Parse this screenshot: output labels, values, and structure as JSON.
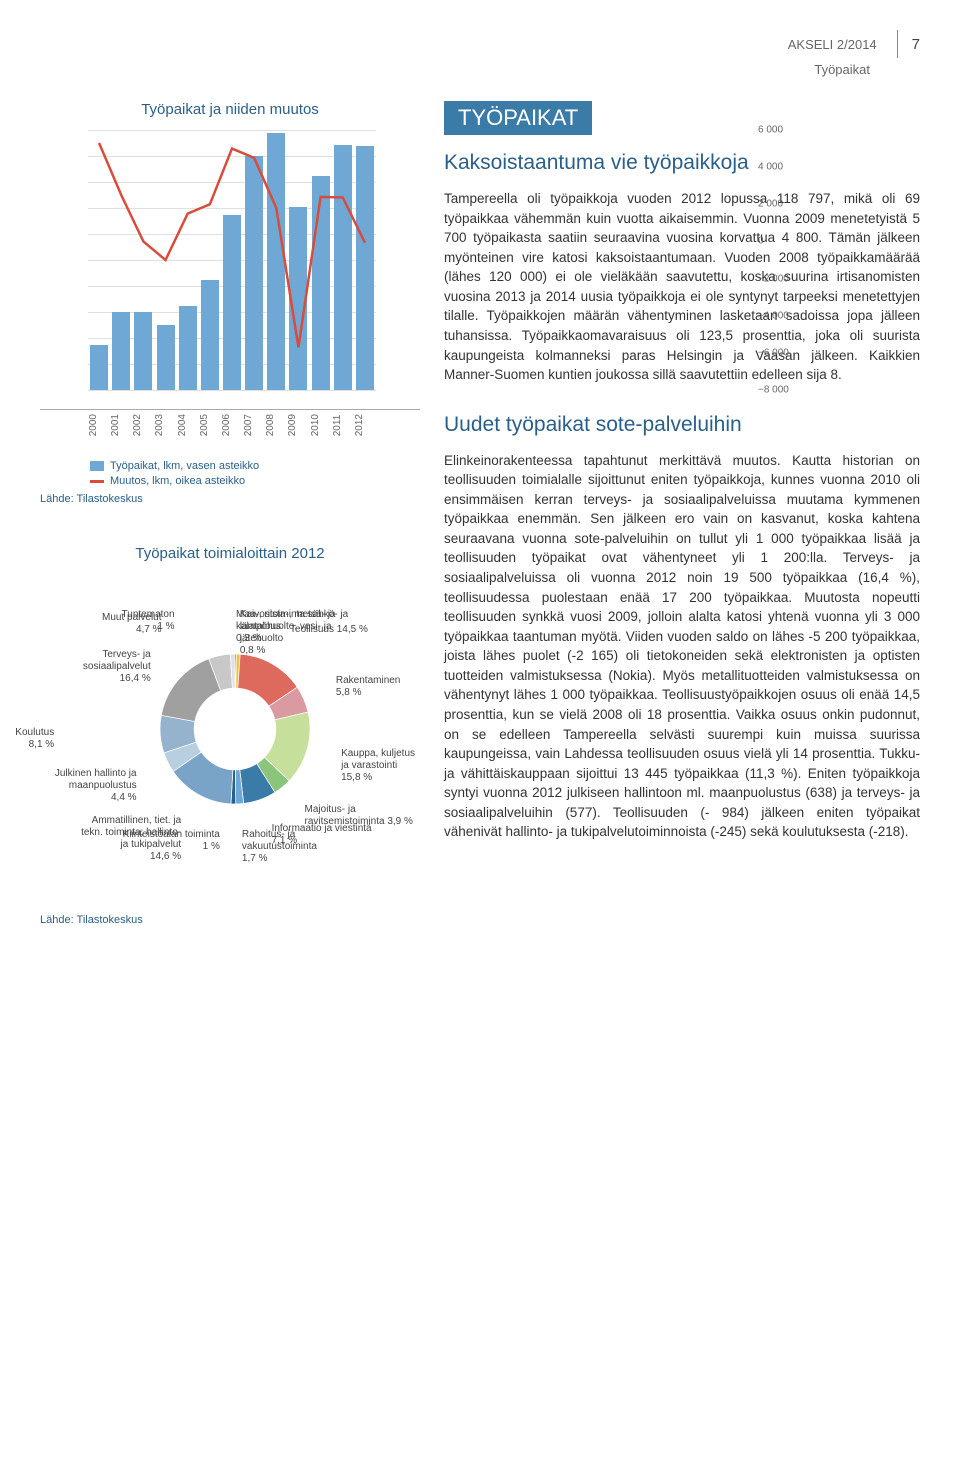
{
  "header": {
    "journal": "AKSELI 2/2014",
    "page": "7",
    "subtitle": "Työpaikat"
  },
  "banner": "TYÖPAIKAT",
  "section1": {
    "heading": "Kaksoistaantuma vie työpaikkoja",
    "body": "Tampereella oli työpaikkoja vuoden 2012 lopussa 118 797, mikä oli 69 työpaikkaa vähemmän kuin vuotta aikaisemmin. Vuonna 2009 menetetyistä 5 700 työpaikasta saatiin seuraavina vuosina korvattua 4 800. Tämän jälkeen myönteinen vire katosi kaksoistaantumaan. Vuoden 2008 työpaikkamäärää (lähes 120 000) ei ole vieläkään saavutettu, koska suurina irtisanomisten vuosina 2013 ja 2014 uusia työpaikkoja ei ole syntynyt tarpeeksi menetettyjen tilalle. Työpaikkojen määrän vähentyminen lasketaan sadoissa jopa jälleen tuhansissa. Työpaikkaomavaraisuus oli 123,5 prosenttia, joka oli suurista kaupungeista kolmanneksi paras Helsingin ja Vaasan jälkeen. Kaikkien Manner-Suomen kuntien joukossa sillä saavutettiin edelleen sija 8."
  },
  "section2": {
    "heading": "Uudet työpaikat sote-palveluihin",
    "body": "Elinkeinorakenteessa tapahtunut merkittävä muutos. Kautta historian on teollisuuden toimialalle sijoittunut eniten työpaikkoja, kunnes vuonna 2010 oli ensimmäisen kerran terveys- ja sosiaalipalveluissa muutama kymmenen työpaikkaa enemmän. Sen jälkeen ero vain on kasvanut, koska kahtena seuraavana vuonna sote-palveluihin on tullut yli 1 000 työpaikkaa lisää ja teollisuuden työpaikat ovat vähentyneet yli 1 200:lla. Terveys- ja sosiaalipalveluissa oli vuonna 2012 noin 19 500 työpaikkaa (16,4 %), teollisuudessa puolestaan enää 17 200 työpaikkaa. Muutosta nopeutti teollisuuden synkkä vuosi 2009, jolloin alalta katosi yhtenä vuonna yli 3 000 työpaikkaa taantuman myötä. Viiden vuoden saldo on lähes -5 200 työpaikkaa, joista lähes puolet (-2 165) oli tietokoneiden sekä elektronisten ja optisten tuotteiden valmistuksessa (Nokia). Myös metallituotteiden valmistuksessa on vähentynyt lähes 1 000 työpaikkaa. Teollisuustyöpaikkojen osuus oli enää 14,5 prosenttia, kun se vielä 2008 oli 18 prosenttia. Vaikka osuus onkin pudonnut, on se edelleen Tampereella selvästi suurempi kuin muissa suurissa kaupungeissa, vain Lahdessa teollisuuden osuus vielä yli 14 prosenttia. Tukku- ja vähittäiskauppaan sijoittui 13 445 työpaikkaa (11,3 %). Eniten työpaikkoja syntyi vuonna 2012 julkiseen hallintoon ml. maanpuolustus (638) ja terveys- ja sosiaalipalveluihin (577). Teollisuuden (- 984) jälkeen eniten työpaikat vähenivät hallinto- ja tukipalvelutoiminnoista (-245) sekä koulutuksesta (-218)."
  },
  "combo": {
    "title": "Työpaikat ja niiden muutos",
    "years": [
      "2000",
      "2001",
      "2002",
      "2003",
      "2004",
      "2005",
      "2006",
      "2007",
      "2008",
      "2009",
      "2010",
      "2011",
      "2012"
    ],
    "left_axis": {
      "min": 100000,
      "max": 120000,
      "step": 2000
    },
    "right_axis": {
      "min": -8000,
      "max": 6000,
      "step": 2000
    },
    "bar_values": [
      103500,
      106000,
      106000,
      105000,
      106500,
      108500,
      113500,
      118000,
      119800,
      114100,
      116500,
      118866,
      118797
    ],
    "line_values": [
      5300,
      2500,
      0,
      -1000,
      1500,
      2000,
      5000,
      4500,
      1800,
      -5700,
      2400,
      2366,
      -69
    ],
    "bar_color": "#6fa8d4",
    "line_color": "#d94c3c",
    "grid_color": "#e0e0e0",
    "legend_bar": "Työpaikat, lkm, vasen asteikko",
    "legend_line": "Muutos, lkm, oikea asteikko",
    "source": "Lähde: Tilastokeskus"
  },
  "pie": {
    "title": "Työpaikat toimialoittain 2012",
    "source": "Lähde: Tilastokeskus",
    "slices": [
      {
        "label": "Maa-, riista-, metsä- ja kalatalous",
        "pct": 0.3,
        "color": "#2e6b1f"
      },
      {
        "label": "Kaivostoiminta sähkö- ja lämpöhuolto, vesi- ja jätehuolto",
        "pct": 0.8,
        "color": "#f0c040"
      },
      {
        "label": "Teollisuus 14,5 %",
        "pct": 14.5,
        "color": "#dd6a5c"
      },
      {
        "label": "Rakentaminen",
        "pct": 5.8,
        "color": "#d99aa0"
      },
      {
        "label": "Kauppa, kuljetus ja varastointi",
        "pct": 15.8,
        "color": "#c6e09b"
      },
      {
        "label": "Majoitus- ja ravitsemistoiminta 3,9 %",
        "pct": 3.9,
        "color": "#8bc57c"
      },
      {
        "label": "Informaatio ja viestintä",
        "pct": 7.1,
        "color": "#3b7ba8"
      },
      {
        "label": "Rahoitus- ja vakuutustoiminta",
        "pct": 1.7,
        "color": "#6fa8d4"
      },
      {
        "label": "Kiinteistöalan toiminta",
        "pct": 1.0,
        "color": "#2a5f8a"
      },
      {
        "label": "Ammatillinen, tiet. ja tekn. toiminta; hallinto- ja tukipalvelut",
        "pct": 14.6,
        "color": "#7aa3c8"
      },
      {
        "label": "Julkinen hallinto ja maanpuolustus",
        "pct": 4.4,
        "color": "#b8cfe0"
      },
      {
        "label": "Koulutus",
        "pct": 8.1,
        "color": "#95b3cc"
      },
      {
        "label": "Terveys- ja sosiaalipalvelut",
        "pct": 16.4,
        "color": "#a0a0a0"
      },
      {
        "label": "Muut palvelut",
        "pct": 4.7,
        "color": "#c8c8c8"
      },
      {
        "label": "Tuntematon",
        "pct": 1.0,
        "color": "#e0e0e0"
      }
    ],
    "inner_ratio": 0.55
  }
}
